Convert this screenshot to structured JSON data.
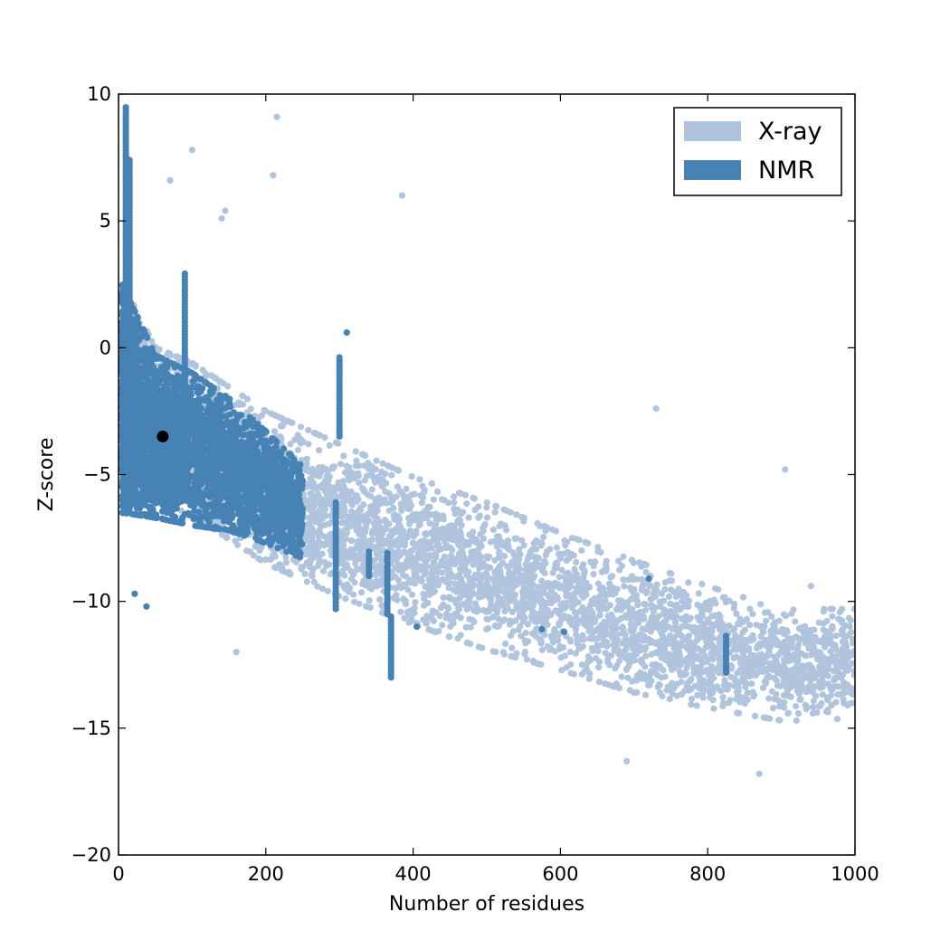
{
  "chart_data": {
    "type": "scatter",
    "xlabel": "Number of residues",
    "ylabel": "Z-score",
    "xlim": [
      0,
      1000
    ],
    "ylim": [
      -20,
      10
    ],
    "xticks": [
      0,
      200,
      400,
      600,
      800,
      1000
    ],
    "yticks": [
      10,
      5,
      0,
      -5,
      -10,
      -15,
      -20
    ],
    "xtick_labels": [
      "0",
      "200",
      "400",
      "600",
      "800",
      "1000"
    ],
    "ytick_labels": [
      "10",
      "5",
      "0",
      "−5",
      "−10",
      "−15",
      "−20"
    ],
    "grid": false,
    "legend_position": "top-right",
    "series": [
      {
        "name": "X-ray",
        "color": "#b0c4de",
        "trend": [
          {
            "x": 10,
            "center": -1.5,
            "spread": 3.8
          },
          {
            "x": 50,
            "center": -3.0,
            "spread": 3.0
          },
          {
            "x": 100,
            "center": -3.6,
            "spread": 3.0
          },
          {
            "x": 200,
            "center": -5.5,
            "spread": 3.0
          },
          {
            "x": 300,
            "center": -6.8,
            "spread": 3.0
          },
          {
            "x": 400,
            "center": -8.0,
            "spread": 2.9
          },
          {
            "x": 500,
            "center": -9.0,
            "spread": 2.9
          },
          {
            "x": 600,
            "center": -10.0,
            "spread": 2.7
          },
          {
            "x": 700,
            "center": -11.0,
            "spread": 2.6
          },
          {
            "x": 800,
            "center": -11.8,
            "spread": 2.4
          },
          {
            "x": 900,
            "center": -12.5,
            "spread": 2.2
          },
          {
            "x": 1000,
            "center": -12.5,
            "spread": 2.2
          }
        ],
        "outliers": [
          {
            "x": 215,
            "y": 9.1
          },
          {
            "x": 100,
            "y": 7.8
          },
          {
            "x": 70,
            "y": 6.6
          },
          {
            "x": 210,
            "y": 6.8
          },
          {
            "x": 385,
            "y": 6.0
          },
          {
            "x": 145,
            "y": 5.4
          },
          {
            "x": 140,
            "y": 5.1
          },
          {
            "x": 160,
            "y": -12.0
          },
          {
            "x": 730,
            "y": -2.4
          },
          {
            "x": 690,
            "y": -16.3
          },
          {
            "x": 870,
            "y": -16.8
          },
          {
            "x": 905,
            "y": -4.8
          },
          {
            "x": 940,
            "y": -9.4
          },
          {
            "x": 5,
            "y": -6.0
          }
        ]
      },
      {
        "name": "NMR",
        "color": "#4682b4",
        "trend": [
          {
            "x": 5,
            "center": -2.0,
            "spread": 4.5
          },
          {
            "x": 50,
            "center": -3.5,
            "spread": 3.2
          },
          {
            "x": 100,
            "center": -4.0,
            "spread": 3.0
          },
          {
            "x": 150,
            "center": -4.6,
            "spread": 2.6
          },
          {
            "x": 200,
            "center": -5.5,
            "spread": 2.2
          },
          {
            "x": 250,
            "center": -6.5,
            "spread": 1.8
          }
        ],
        "columns": [
          {
            "x": 10,
            "y_min": -3.0,
            "y_max": 9.5
          },
          {
            "x": 15,
            "y_min": -4.0,
            "y_max": 7.5
          },
          {
            "x": 90,
            "y_min": -5.0,
            "y_max": 3.0
          },
          {
            "x": 295,
            "y_min": -10.3,
            "y_max": -6.0
          },
          {
            "x": 300,
            "y_min": -3.5,
            "y_max": -0.3
          },
          {
            "x": 340,
            "y_min": -9.0,
            "y_max": -8.0
          },
          {
            "x": 365,
            "y_min": -10.5,
            "y_max": -8.0
          },
          {
            "x": 370,
            "y_min": -13.0,
            "y_max": -10.5
          },
          {
            "x": 825,
            "y_min": -12.8,
            "y_max": -11.3
          }
        ],
        "outliers": [
          {
            "x": 310,
            "y": 0.6
          },
          {
            "x": 405,
            "y": -11.0
          },
          {
            "x": 575,
            "y": -11.1
          },
          {
            "x": 605,
            "y": -11.2
          },
          {
            "x": 720,
            "y": -9.1
          },
          {
            "x": 38,
            "y": -10.2
          },
          {
            "x": 22,
            "y": -9.7
          }
        ]
      }
    ],
    "highlight_point": {
      "x": 60,
      "y": -3.5,
      "color": "#000000"
    }
  }
}
